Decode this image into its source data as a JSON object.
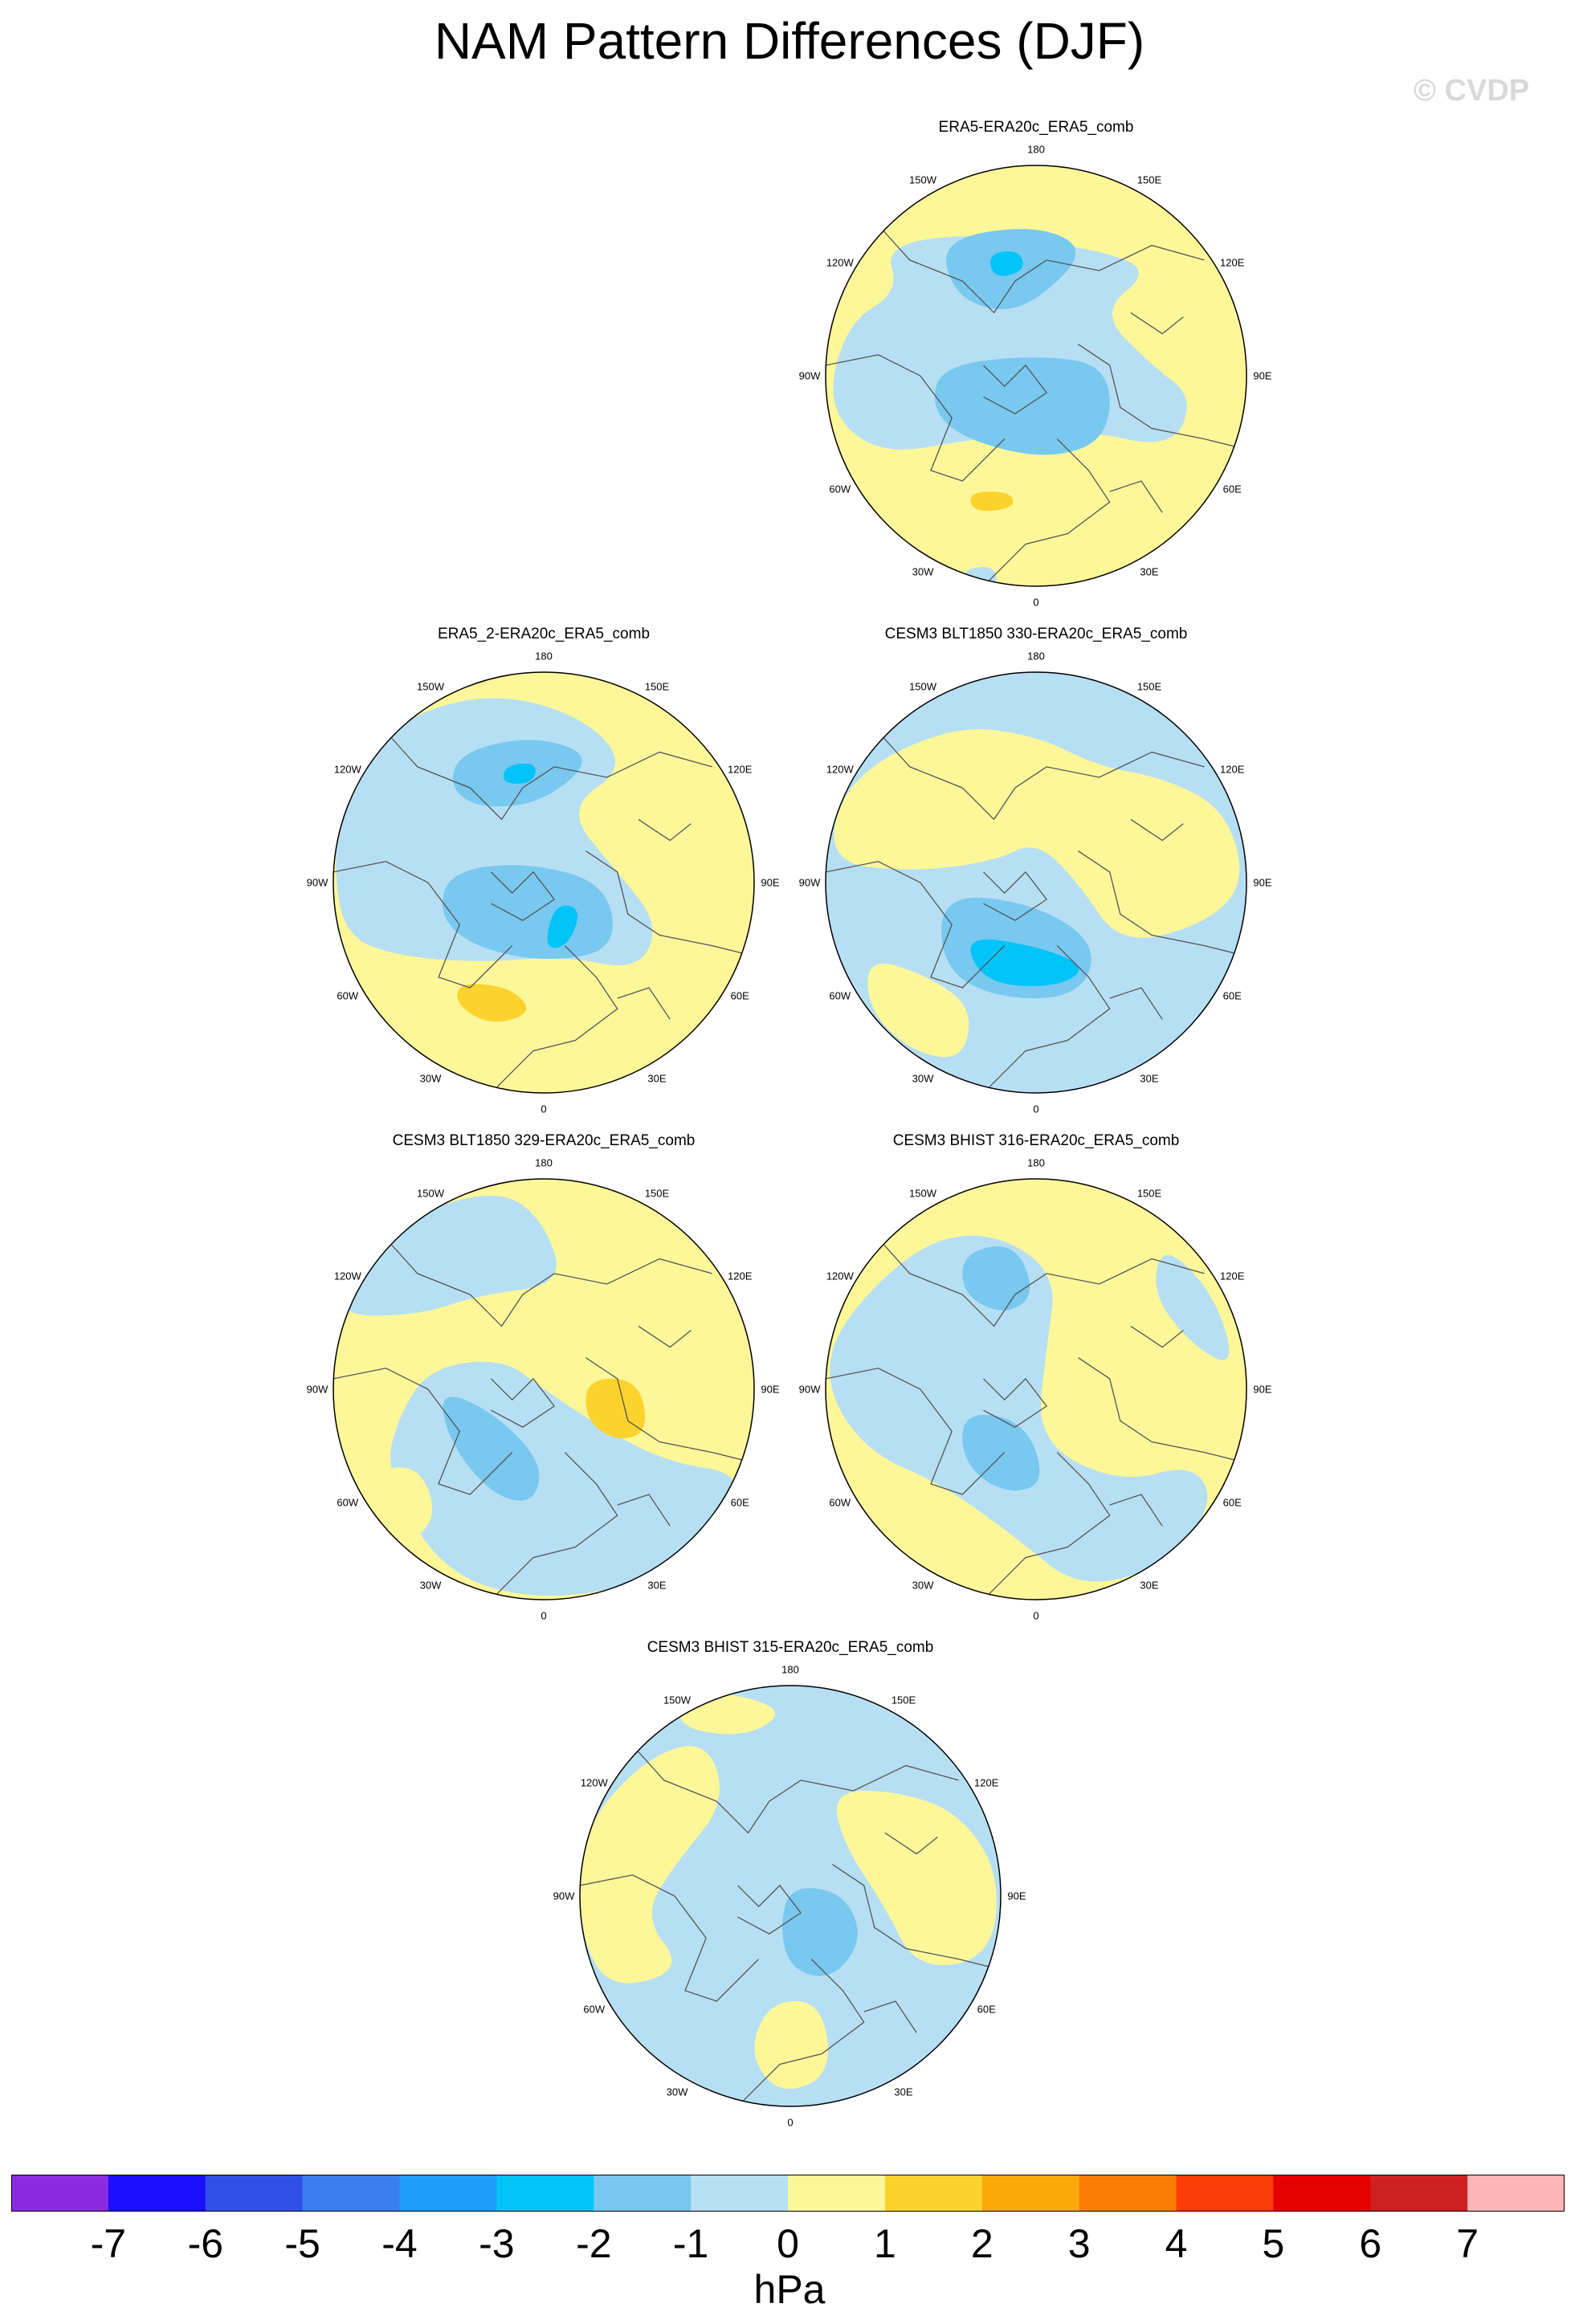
{
  "title": "NAM Pattern Differences (DJF)",
  "watermark": "© CVDP",
  "colors": {
    "neg1": "#b7dff3",
    "neg2": "#78c8f0",
    "neg3": "#00c3f7",
    "pos1": "#fdf79a",
    "pos2": "#fbd32c",
    "coast": "#555555",
    "edge": "#000000"
  },
  "longitude_labels": [
    "180",
    "150E",
    "120E",
    "90E",
    "60E",
    "30E",
    "0",
    "30W",
    "60W",
    "90W",
    "120W",
    "150W"
  ],
  "panels": [
    {
      "id": "era5",
      "title": "ERA5-ERA20c_ERA5_comb",
      "background": "pos1"
    },
    {
      "id": "era5-2",
      "title": "ERA5_2-ERA20c_ERA5_comb",
      "background": "pos1"
    },
    {
      "id": "blt330",
      "title": "CESM3 BLT1850 330-ERA20c_ERA5_comb",
      "background": "neg1"
    },
    {
      "id": "blt329",
      "title": "CESM3 BLT1850 329-ERA20c_ERA5_comb",
      "background": "pos1"
    },
    {
      "id": "bhist316",
      "title": "CESM3 BHIST 316-ERA20c_ERA5_comb",
      "background": "pos1"
    },
    {
      "id": "bhist315",
      "title": "CESM3 BHIST 315-ERA20c_ERA5_comb",
      "background": "neg1"
    }
  ],
  "colorbar": {
    "units": "hPa",
    "colors": [
      "#8a2be2",
      "#1a10ff",
      "#2f50e6",
      "#3a7ef0",
      "#1e9dfc",
      "#00c3f7",
      "#78c8f0",
      "#b7dff3",
      "#fdf79a",
      "#fbd32c",
      "#fbaa0a",
      "#fb7d08",
      "#fb3c06",
      "#e60000",
      "#cf2020",
      "#ffb6b6"
    ],
    "labels": [
      "-7",
      "-6",
      "-5",
      "-4",
      "-3",
      "-2",
      "-1",
      "0",
      "1",
      "2",
      "3",
      "4",
      "5",
      "6",
      "7"
    ]
  }
}
